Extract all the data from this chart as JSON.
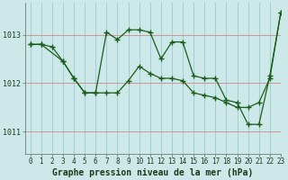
{
  "title": "Graphe pression niveau de la mer (hPa)",
  "bg_color": "#cce8e8",
  "grid_color": "#99cccc",
  "line_color": "#1a5c1a",
  "xlim": [
    -0.5,
    23
  ],
  "ylim": [
    1010.55,
    1013.65
  ],
  "yticks": [
    1011,
    1012,
    1013
  ],
  "xticks": [
    0,
    1,
    2,
    3,
    4,
    5,
    6,
    7,
    8,
    9,
    10,
    11,
    12,
    13,
    14,
    15,
    16,
    17,
    18,
    19,
    20,
    21,
    22,
    23
  ],
  "line1_x": [
    0,
    1,
    2,
    3,
    4,
    5,
    6,
    7,
    8,
    9,
    10,
    11,
    12,
    13,
    14,
    15,
    16,
    17,
    18,
    19,
    20,
    21,
    22,
    23
  ],
  "line1_y": [
    1012.8,
    1012.8,
    1012.75,
    1012.45,
    1012.1,
    1011.8,
    1011.8,
    1011.8,
    1011.8,
    1012.05,
    1012.35,
    1012.2,
    1012.1,
    1012.1,
    1012.05,
    1011.8,
    1011.75,
    1011.7,
    1011.6,
    1011.5,
    1011.5,
    1011.6,
    1012.1,
    1013.45
  ],
  "line2_x": [
    0,
    1,
    3,
    4,
    5,
    6,
    7,
    8,
    9,
    10,
    11,
    12,
    13,
    14,
    15,
    16,
    17,
    18,
    19,
    20,
    21,
    22,
    23
  ],
  "line2_y": [
    1012.8,
    1012.8,
    1012.45,
    1012.1,
    1011.8,
    1011.8,
    1013.05,
    1012.9,
    1013.1,
    1013.1,
    1013.05,
    1012.5,
    1012.85,
    1012.85,
    1012.15,
    1012.1,
    1012.1,
    1011.65,
    1011.6,
    1011.15,
    1011.15,
    1012.15,
    1013.45
  ],
  "tick_fontsize": 5.5,
  "label_fontsize": 7.0,
  "spine_color": "#666666"
}
